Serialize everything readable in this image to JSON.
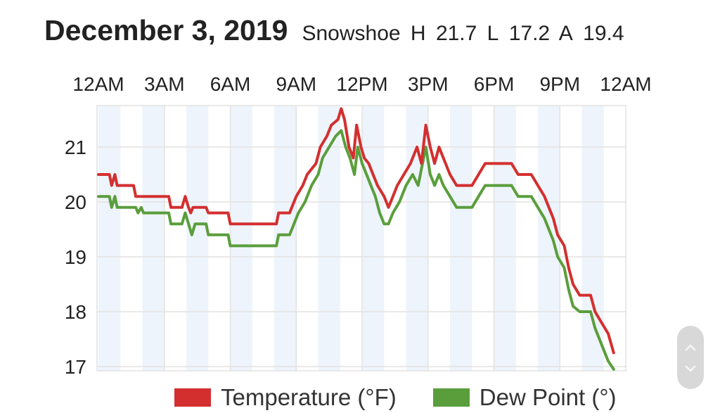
{
  "header": {
    "date": "December 3, 2019",
    "station": "Snowshoe",
    "high_label": "H",
    "high": "21.7",
    "low_label": "L",
    "low": "17.2",
    "avg_label": "A",
    "avg": "19.4"
  },
  "legend": {
    "temperature": "Temperature (°F)",
    "dew_point": "Dew Point (°)"
  },
  "colors": {
    "temperature": "#d32f2f",
    "dew_point": "#5a9e3c",
    "band": "#eef4fb",
    "grid": "#e2e2e2"
  },
  "scroll_widget": {
    "up_icon": "chevron-up-icon",
    "down_icon": "chevron-down-icon"
  },
  "chart_data": {
    "type": "line",
    "title": "",
    "xlabel": "",
    "ylabel": "",
    "x_ticks": [
      "12AM",
      "3AM",
      "6AM",
      "9AM",
      "12PM",
      "3PM",
      "6PM",
      "9PM",
      "12AM"
    ],
    "x_range_hours": [
      0,
      24
    ],
    "y_ticks": [
      17,
      18,
      19,
      20,
      21
    ],
    "ylim": [
      16.95,
      21.75
    ],
    "grid": true,
    "legend_position": "bottom",
    "series": [
      {
        "name": "Temperature (°F)",
        "points": [
          [
            0,
            20.5
          ],
          [
            0.5,
            20.5
          ],
          [
            0.6,
            20.3
          ],
          [
            0.75,
            20.5
          ],
          [
            0.85,
            20.3
          ],
          [
            1.6,
            20.3
          ],
          [
            1.7,
            20.1
          ],
          [
            3.2,
            20.1
          ],
          [
            3.3,
            19.9
          ],
          [
            3.8,
            19.9
          ],
          [
            3.95,
            20.1
          ],
          [
            4.1,
            19.9
          ],
          [
            4.2,
            19.8
          ],
          [
            4.3,
            19.9
          ],
          [
            4.9,
            19.9
          ],
          [
            5.0,
            19.8
          ],
          [
            5.9,
            19.8
          ],
          [
            6.0,
            19.6
          ],
          [
            8.1,
            19.6
          ],
          [
            8.2,
            19.8
          ],
          [
            8.7,
            19.8
          ],
          [
            8.8,
            19.9
          ],
          [
            9.0,
            20.1
          ],
          [
            9.3,
            20.3
          ],
          [
            9.5,
            20.5
          ],
          [
            9.9,
            20.7
          ],
          [
            10.1,
            21.0
          ],
          [
            10.4,
            21.2
          ],
          [
            10.6,
            21.4
          ],
          [
            10.9,
            21.5
          ],
          [
            11.05,
            21.7
          ],
          [
            11.2,
            21.5
          ],
          [
            11.4,
            21.0
          ],
          [
            11.6,
            20.8
          ],
          [
            11.75,
            21.4
          ],
          [
            11.95,
            21.0
          ],
          [
            12.1,
            20.8
          ],
          [
            12.3,
            20.7
          ],
          [
            12.5,
            20.5
          ],
          [
            12.7,
            20.3
          ],
          [
            13.0,
            20.1
          ],
          [
            13.2,
            19.9
          ],
          [
            13.4,
            20.1
          ],
          [
            13.6,
            20.3
          ],
          [
            13.9,
            20.5
          ],
          [
            14.2,
            20.7
          ],
          [
            14.5,
            21.0
          ],
          [
            14.7,
            20.7
          ],
          [
            14.9,
            21.4
          ],
          [
            15.1,
            21.0
          ],
          [
            15.3,
            20.7
          ],
          [
            15.5,
            21.0
          ],
          [
            15.7,
            20.8
          ],
          [
            16.0,
            20.5
          ],
          [
            16.3,
            20.3
          ],
          [
            17.0,
            20.3
          ],
          [
            17.3,
            20.5
          ],
          [
            17.6,
            20.7
          ],
          [
            18.8,
            20.7
          ],
          [
            19.1,
            20.5
          ],
          [
            19.7,
            20.5
          ],
          [
            20.0,
            20.3
          ],
          [
            20.3,
            20.1
          ],
          [
            20.5,
            19.9
          ],
          [
            20.7,
            19.7
          ],
          [
            20.9,
            19.4
          ],
          [
            21.2,
            19.2
          ],
          [
            21.4,
            18.8
          ],
          [
            21.6,
            18.5
          ],
          [
            21.9,
            18.3
          ],
          [
            22.4,
            18.3
          ],
          [
            22.6,
            18.0
          ],
          [
            22.9,
            17.8
          ],
          [
            23.2,
            17.6
          ],
          [
            23.45,
            17.25
          ]
        ]
      },
      {
        "name": "Dew Point (°)",
        "points": [
          [
            0,
            20.1
          ],
          [
            0.5,
            20.1
          ],
          [
            0.6,
            19.9
          ],
          [
            0.75,
            20.1
          ],
          [
            0.85,
            19.9
          ],
          [
            1.7,
            19.9
          ],
          [
            1.8,
            19.8
          ],
          [
            1.95,
            19.9
          ],
          [
            2.05,
            19.8
          ],
          [
            3.2,
            19.8
          ],
          [
            3.3,
            19.6
          ],
          [
            3.8,
            19.6
          ],
          [
            3.95,
            19.8
          ],
          [
            4.1,
            19.6
          ],
          [
            4.25,
            19.4
          ],
          [
            4.4,
            19.6
          ],
          [
            4.9,
            19.6
          ],
          [
            5.0,
            19.4
          ],
          [
            5.9,
            19.4
          ],
          [
            6.0,
            19.2
          ],
          [
            8.1,
            19.2
          ],
          [
            8.2,
            19.4
          ],
          [
            8.7,
            19.4
          ],
          [
            8.9,
            19.6
          ],
          [
            9.1,
            19.8
          ],
          [
            9.4,
            20.0
          ],
          [
            9.7,
            20.3
          ],
          [
            10.0,
            20.5
          ],
          [
            10.2,
            20.8
          ],
          [
            10.5,
            21.0
          ],
          [
            10.8,
            21.2
          ],
          [
            11.05,
            21.3
          ],
          [
            11.25,
            21.0
          ],
          [
            11.45,
            20.8
          ],
          [
            11.65,
            20.5
          ],
          [
            11.8,
            21.0
          ],
          [
            12.0,
            20.7
          ],
          [
            12.2,
            20.5
          ],
          [
            12.4,
            20.3
          ],
          [
            12.6,
            20.1
          ],
          [
            12.8,
            19.8
          ],
          [
            13.0,
            19.6
          ],
          [
            13.2,
            19.6
          ],
          [
            13.4,
            19.8
          ],
          [
            13.7,
            20.0
          ],
          [
            14.0,
            20.3
          ],
          [
            14.3,
            20.5
          ],
          [
            14.55,
            20.3
          ],
          [
            14.9,
            21.0
          ],
          [
            15.1,
            20.5
          ],
          [
            15.3,
            20.3
          ],
          [
            15.5,
            20.5
          ],
          [
            15.7,
            20.3
          ],
          [
            16.0,
            20.1
          ],
          [
            16.3,
            19.9
          ],
          [
            17.0,
            19.9
          ],
          [
            17.3,
            20.1
          ],
          [
            17.6,
            20.3
          ],
          [
            18.8,
            20.3
          ],
          [
            19.1,
            20.1
          ],
          [
            19.7,
            20.1
          ],
          [
            20.0,
            19.9
          ],
          [
            20.3,
            19.7
          ],
          [
            20.5,
            19.5
          ],
          [
            20.7,
            19.3
          ],
          [
            20.9,
            19.0
          ],
          [
            21.2,
            18.8
          ],
          [
            21.4,
            18.4
          ],
          [
            21.6,
            18.1
          ],
          [
            21.9,
            18.0
          ],
          [
            22.4,
            18.0
          ],
          [
            22.6,
            17.7
          ],
          [
            22.9,
            17.4
          ],
          [
            23.2,
            17.1
          ],
          [
            23.45,
            16.95
          ]
        ]
      }
    ]
  }
}
